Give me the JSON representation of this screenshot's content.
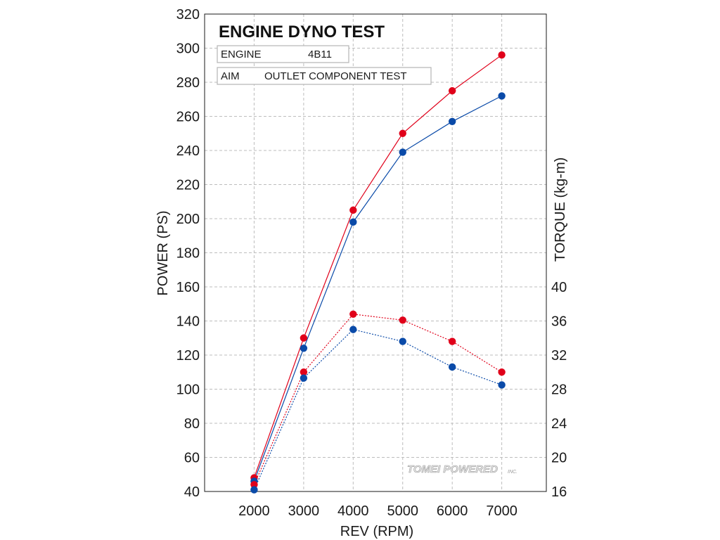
{
  "chart_data": {
    "type": "line",
    "title": "ENGINE DYNO TEST",
    "info": [
      {
        "label": "ENGINE",
        "value": "4B11"
      },
      {
        "label": "AIM",
        "value": "OUTLET COMPONENT TEST"
      }
    ],
    "xlabel": "REV (RPM)",
    "ylabel": "POWER (PS)",
    "y2label": "TORQUE (kg-m)",
    "x": [
      2000,
      3000,
      4000,
      5000,
      6000,
      7000
    ],
    "x_ticks": [
      "2000",
      "3000",
      "4000",
      "5000",
      "6000",
      "7000"
    ],
    "xlim": [
      1000,
      7900
    ],
    "ylim": [
      40,
      320
    ],
    "y_ticks": [
      "40",
      "60",
      "80",
      "100",
      "120",
      "140",
      "160",
      "180",
      "200",
      "220",
      "240",
      "260",
      "280",
      "300",
      "320"
    ],
    "y2lim": [
      16,
      72
    ],
    "y2_ticks": [
      "16",
      "20",
      "24",
      "28",
      "32",
      "36",
      "40"
    ],
    "grid": true,
    "logo": "TOMEI POWERED",
    "logo_suffix": "INC.",
    "series": [
      {
        "axis": "power",
        "line": "solid",
        "color": "#e0001a",
        "values": [
          48,
          130,
          205,
          250,
          275,
          296
        ]
      },
      {
        "axis": "power",
        "line": "solid",
        "color": "#0a4aa8",
        "values": [
          46,
          124,
          198,
          239,
          257,
          272
        ]
      },
      {
        "axis": "torque",
        "line": "dotted",
        "color": "#e0001a",
        "values": [
          16.8,
          30,
          36.8,
          36.1,
          33.6,
          30
        ]
      },
      {
        "axis": "torque",
        "line": "dotted",
        "color": "#0a4aa8",
        "values": [
          16.2,
          29.3,
          35,
          33.6,
          30.6,
          28.5
        ]
      }
    ]
  }
}
